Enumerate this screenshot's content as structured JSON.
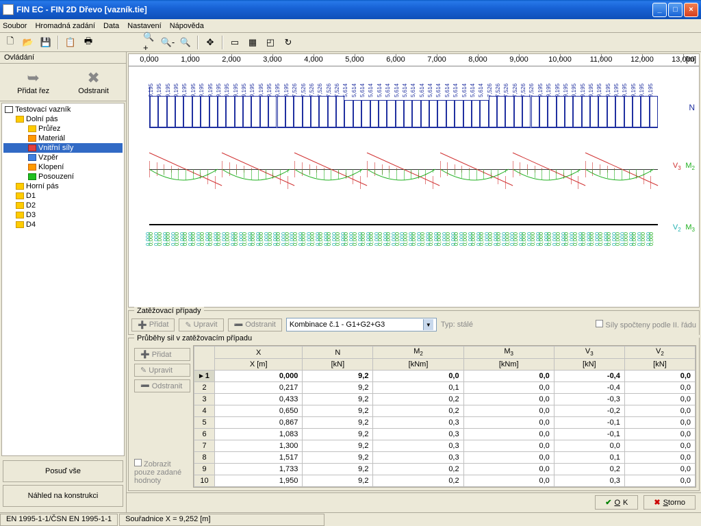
{
  "window": {
    "title": "FIN EC - FIN 2D Dřevo [vazník.tie]"
  },
  "menu": [
    "Soubor",
    "Hromadná zadání",
    "Data",
    "Nastavení",
    "Nápověda"
  ],
  "sidebar": {
    "title": "Ovládání",
    "actions": {
      "add": "Přidat řez",
      "remove": "Odstranit"
    },
    "tree": [
      {
        "label": "Testovací vazník",
        "indent": 0,
        "icon": "ti-folder"
      },
      {
        "label": "Dolní pás",
        "indent": 1,
        "icon": "ti-yellow"
      },
      {
        "label": "Průřez",
        "indent": 2,
        "icon": "ti-yellow"
      },
      {
        "label": "Materiál",
        "indent": 2,
        "icon": "ti-orange"
      },
      {
        "label": "Vnitřní síly",
        "indent": 2,
        "icon": "ti-red",
        "selected": true
      },
      {
        "label": "Vzpěr",
        "indent": 2,
        "icon": "ti-blue"
      },
      {
        "label": "Klopení",
        "indent": 2,
        "icon": "ti-orange"
      },
      {
        "label": "Posouzení",
        "indent": 2,
        "icon": "ti-check"
      },
      {
        "label": "Horní pás",
        "indent": 1,
        "icon": "ti-yellow"
      },
      {
        "label": "D1",
        "indent": 1,
        "icon": "ti-yellow"
      },
      {
        "label": "D2",
        "indent": 1,
        "icon": "ti-yellow"
      },
      {
        "label": "D3",
        "indent": 1,
        "icon": "ti-yellow"
      },
      {
        "label": "D4",
        "indent": 1,
        "icon": "ti-yellow"
      }
    ],
    "buttons": [
      "Posuď vše",
      "Náhled na konstrukci"
    ]
  },
  "ruler": {
    "ticks": [
      "0,000",
      "1,000",
      "2,000",
      "3,000",
      "4,000",
      "5,000",
      "6,000",
      "7,000",
      "8,000",
      "9,000",
      "10,000",
      "11,000",
      "12,000",
      "13,000"
    ],
    "unit": "[m]"
  },
  "diagrams": {
    "n_label": "N",
    "n_color": "#2030a0",
    "vm_label_v3": "V",
    "vm_sub_v3": "3",
    "vm_label_m2": "M",
    "vm_sub_m2": "2",
    "v3_color": "#d03030",
    "m2_color": "#20b020",
    "vm2_label_v2": "V",
    "vm2_sub_v2": "2",
    "vm2_label_m3": "M",
    "vm2_sub_m3": "3",
    "v2_color": "#20b0b0",
    "m3_color": "#20b020"
  },
  "load_panel": {
    "title": "Zatěžovací případy",
    "add": "Přidat",
    "edit": "Upravit",
    "remove": "Odstranit",
    "combo": "Kombinace č.1 - G1+G2+G3",
    "type_label": "Typ: stálé",
    "check_label": "Síly spočteny podle II. řádu"
  },
  "forces_panel": {
    "title": "Průběhy sil v zatěžovacím případu",
    "add": "Přidat",
    "edit": "Upravit",
    "remove": "Odstranit",
    "show_only": "Zobrazit pouze zadané hodnoty"
  },
  "table": {
    "headers1": [
      "X",
      "N",
      "M",
      "M",
      "V",
      "V"
    ],
    "sub1": [
      "",
      "",
      "2",
      "3",
      "3",
      "2"
    ],
    "headers2": [
      "X [m]",
      "[kN]",
      "[kNm]",
      "[kNm]",
      "[kN]",
      "[kN]"
    ],
    "rows": [
      [
        "1",
        "0,000",
        "9,2",
        "0,0",
        "0,0",
        "-0,4",
        "0,0"
      ],
      [
        "2",
        "0,217",
        "9,2",
        "0,1",
        "0,0",
        "-0,4",
        "0,0"
      ],
      [
        "3",
        "0,433",
        "9,2",
        "0,2",
        "0,0",
        "-0,3",
        "0,0"
      ],
      [
        "4",
        "0,650",
        "9,2",
        "0,2",
        "0,0",
        "-0,2",
        "0,0"
      ],
      [
        "5",
        "0,867",
        "9,2",
        "0,3",
        "0,0",
        "-0,1",
        "0,0"
      ],
      [
        "6",
        "1,083",
        "9,2",
        "0,3",
        "0,0",
        "-0,1",
        "0,0"
      ],
      [
        "7",
        "1,300",
        "9,2",
        "0,3",
        "0,0",
        "0,0",
        "0,0"
      ],
      [
        "8",
        "1,517",
        "9,2",
        "0,3",
        "0,0",
        "0,1",
        "0,0"
      ],
      [
        "9",
        "1,733",
        "9,2",
        "0,2",
        "0,0",
        "0,2",
        "0,0"
      ],
      [
        "10",
        "1,950",
        "9,2",
        "0,2",
        "0,0",
        "0,3",
        "0,0"
      ]
    ],
    "selected": 0
  },
  "buttons": {
    "ok": "OK",
    "cancel": "Storno"
  },
  "status": {
    "code": "EN 1995-1-1/ČSN EN 1995-1-1",
    "coord": "Souřadnice X = 9,252 [m]"
  }
}
